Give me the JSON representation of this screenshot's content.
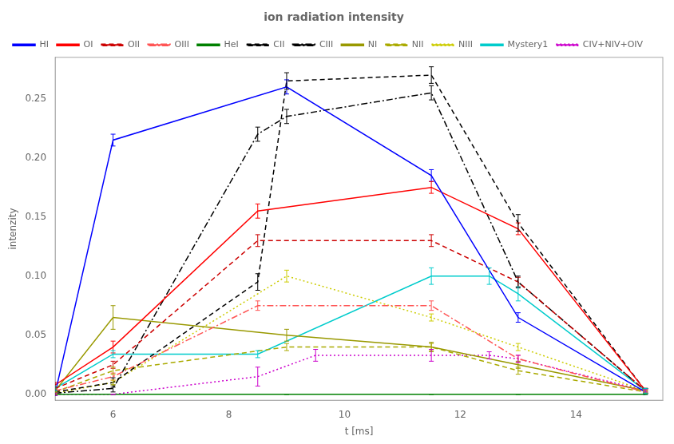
{
  "chart_data": {
    "type": "line",
    "title": "ion radiation intensity",
    "x_label": "t [ms]",
    "y_label": "intenzity",
    "xlim": [
      5.0,
      15.5
    ],
    "ylim": [
      -0.005,
      0.285
    ],
    "xticks": [
      6,
      8,
      10,
      12,
      14
    ],
    "yticks": [
      {
        "value": 0,
        "label": "0.00"
      },
      {
        "value": 0.05,
        "label": "0.05"
      },
      {
        "value": 0.1,
        "label": "0.10"
      },
      {
        "value": 0.15,
        "label": "0.15"
      },
      {
        "value": 0.2,
        "label": "0.20"
      },
      {
        "value": 0.25,
        "label": "0.25"
      }
    ],
    "grid": false,
    "legend": "upper left",
    "series": [
      {
        "name": "HI",
        "color": "#0000ff",
        "line_style": "solid",
        "x": [
          5.0,
          6.0,
          9.0,
          11.5,
          13.0,
          15.2
        ],
        "values": [
          0.001,
          0.215,
          0.26,
          0.185,
          0.065,
          0.002
        ],
        "yerr": [
          0.002,
          0.005,
          0.006,
          0.005,
          0.004,
          0.002
        ]
      },
      {
        "name": "OI",
        "color": "#ff0000",
        "line_style": "solid",
        "x": [
          5.0,
          6.0,
          8.5,
          11.5,
          13.0,
          15.2
        ],
        "values": [
          0.008,
          0.04,
          0.155,
          0.175,
          0.14,
          0.003
        ],
        "yerr": [
          0.002,
          0.005,
          0.006,
          0.005,
          0.005,
          0.002
        ]
      },
      {
        "name": "OII",
        "color": "#cc0000",
        "line_style": "dashed",
        "x": [
          5.0,
          6.0,
          8.5,
          11.5,
          13.0,
          15.2
        ],
        "values": [
          0.005,
          0.025,
          0.13,
          0.13,
          0.095,
          0.003
        ],
        "yerr": [
          0.002,
          0.003,
          0.005,
          0.005,
          0.004,
          0.002
        ]
      },
      {
        "name": "OIII",
        "color": "#ff5555",
        "line_style": "dashdot",
        "x": [
          5.0,
          6.0,
          8.5,
          11.5,
          13.0,
          15.2
        ],
        "values": [
          0.003,
          0.015,
          0.075,
          0.075,
          0.03,
          0.002
        ],
        "yerr": [
          0.001,
          0.003,
          0.004,
          0.004,
          0.003,
          0.001
        ]
      },
      {
        "name": "HeI",
        "color": "#008000",
        "line_style": "solid",
        "x": [
          5.0,
          6.0,
          9.0,
          11.5,
          13.0,
          15.2
        ],
        "values": [
          0.0,
          0.0,
          0.0,
          0.0,
          0.0,
          0.0
        ],
        "yerr": [
          0.0,
          0.0,
          0.0,
          0.0,
          0.0,
          0.0
        ]
      },
      {
        "name": "CII",
        "color": "#000000",
        "line_style": "dashed",
        "x": [
          5.0,
          6.0,
          8.5,
          9.0,
          11.5,
          13.0,
          15.2
        ],
        "values": [
          0.002,
          0.01,
          0.095,
          0.265,
          0.27,
          0.145,
          0.003
        ],
        "yerr": [
          0.001,
          0.004,
          0.007,
          0.007,
          0.007,
          0.007,
          0.002
        ]
      },
      {
        "name": "CIII",
        "color": "#000000",
        "line_style": "dashdot",
        "x": [
          5.0,
          6.0,
          8.5,
          9.0,
          11.5,
          13.0,
          15.2
        ],
        "values": [
          0.001,
          0.005,
          0.22,
          0.235,
          0.255,
          0.095,
          0.003
        ],
        "yerr": [
          0.001,
          0.003,
          0.006,
          0.006,
          0.006,
          0.005,
          0.002
        ]
      },
      {
        "name": "NI",
        "color": "#999900",
        "line_style": "solid",
        "x": [
          5.0,
          6.0,
          9.0,
          11.5,
          13.0,
          15.2
        ],
        "values": [
          0.003,
          0.065,
          0.05,
          0.04,
          0.025,
          0.003
        ],
        "yerr": [
          0.002,
          0.01,
          0.005,
          0.004,
          0.003,
          0.001
        ]
      },
      {
        "name": "NII",
        "color": "#aaaa00",
        "line_style": "dashed",
        "x": [
          5.0,
          6.0,
          9.0,
          11.5,
          13.0,
          15.2
        ],
        "values": [
          0.002,
          0.02,
          0.04,
          0.04,
          0.02,
          0.002
        ],
        "yerr": [
          0.001,
          0.003,
          0.003,
          0.003,
          0.003,
          0.001
        ]
      },
      {
        "name": "NIII",
        "color": "#cccc00",
        "line_style": "dotted",
        "x": [
          5.0,
          6.0,
          9.0,
          11.5,
          13.0,
          15.2
        ],
        "values": [
          0.001,
          0.01,
          0.1,
          0.065,
          0.04,
          0.003
        ],
        "yerr": [
          0.001,
          0.002,
          0.005,
          0.003,
          0.003,
          0.001
        ]
      },
      {
        "name": "Mystery1",
        "color": "#00cccc",
        "line_style": "solid",
        "x": [
          5.0,
          6.0,
          8.5,
          11.5,
          12.5,
          13.0,
          15.2
        ],
        "values": [
          0.005,
          0.034,
          0.034,
          0.1,
          0.1,
          0.085,
          0.003
        ],
        "yerr": [
          0.002,
          0.003,
          0.003,
          0.007,
          0.007,
          0.006,
          0.002
        ]
      },
      {
        "name": "CIV+NIV+OIV",
        "color": "#cc00cc",
        "line_style": "dotted",
        "x": [
          5.0,
          6.0,
          8.5,
          9.5,
          11.5,
          12.5,
          13.0,
          15.2
        ],
        "values": [
          0.0,
          0.0,
          0.015,
          0.033,
          0.033,
          0.033,
          0.03,
          0.003
        ],
        "yerr": [
          0.001,
          0.0,
          0.008,
          0.005,
          0.005,
          0.003,
          0.003,
          0.001
        ]
      }
    ]
  }
}
